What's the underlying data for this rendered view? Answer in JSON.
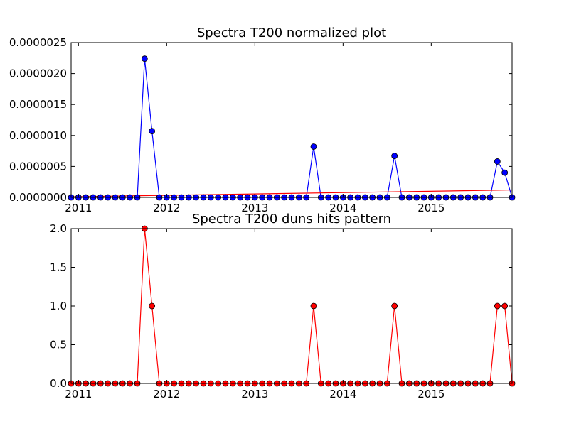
{
  "chart_data": [
    {
      "type": "line",
      "title": "Spectra T200 normalized plot",
      "xlabel": "",
      "ylabel": "",
      "x_tick_labels": [
        "2011",
        "2012",
        "2013",
        "2014",
        "2015"
      ],
      "x_ticks": [
        "2011-01",
        "2012-01",
        "2013-01",
        "2014-01",
        "2015-01"
      ],
      "y_tick_labels": [
        "0.0000000",
        "0.0000005",
        "0.0000010",
        "0.0000015",
        "0.0000020",
        "0.0000025"
      ],
      "y_ticks": [
        0,
        5e-07,
        1e-06,
        1.5e-06,
        2e-06,
        2.5e-06
      ],
      "xlim": [
        "2010-12",
        "2015-12"
      ],
      "ylim": [
        0,
        2.5e-06
      ],
      "grid": false,
      "series": [
        {
          "marker": "circle",
          "color": "#0000ff",
          "x": [
            "2010-12",
            "2011-01",
            "2011-02",
            "2011-03",
            "2011-04",
            "2011-05",
            "2011-06",
            "2011-07",
            "2011-08",
            "2011-09",
            "2011-10",
            "2011-11",
            "2011-12",
            "2012-01",
            "2012-02",
            "2012-03",
            "2012-04",
            "2012-05",
            "2012-06",
            "2012-07",
            "2012-08",
            "2012-09",
            "2012-10",
            "2012-11",
            "2012-12",
            "2013-01",
            "2013-02",
            "2013-03",
            "2013-04",
            "2013-05",
            "2013-06",
            "2013-07",
            "2013-08",
            "2013-09",
            "2013-10",
            "2013-11",
            "2013-12",
            "2014-01",
            "2014-02",
            "2014-03",
            "2014-04",
            "2014-05",
            "2014-06",
            "2014-07",
            "2014-08",
            "2014-09",
            "2014-10",
            "2014-11",
            "2014-12",
            "2015-01",
            "2015-02",
            "2015-03",
            "2015-04",
            "2015-05",
            "2015-06",
            "2015-07",
            "2015-08",
            "2015-09",
            "2015-10",
            "2015-11",
            "2015-12"
          ],
          "values": [
            0,
            0,
            0,
            0,
            0,
            0,
            0,
            0,
            0,
            0,
            2.24e-06,
            1.07e-06,
            0,
            0,
            0,
            0,
            0,
            0,
            0,
            0,
            0,
            0,
            0,
            0,
            0,
            0,
            0,
            0,
            0,
            0,
            0,
            0,
            0,
            8.2e-07,
            0,
            0,
            0,
            0,
            0,
            0,
            0,
            0,
            0,
            0,
            6.7e-07,
            0,
            0,
            0,
            0,
            0,
            0,
            0,
            0,
            0,
            0,
            0,
            0,
            0,
            5.8e-07,
            4e-07,
            0
          ]
        },
        {
          "type": "trend-line",
          "color": "#ff0000",
          "x": [
            "2010-12",
            "2015-12"
          ],
          "values": [
            1e-08,
            1.2e-07
          ]
        }
      ]
    },
    {
      "type": "line",
      "title": "Spectra T200 duns hits pattern",
      "xlabel": "",
      "ylabel": "",
      "x_tick_labels": [
        "2011",
        "2012",
        "2013",
        "2014",
        "2015"
      ],
      "x_ticks": [
        "2011-01",
        "2012-01",
        "2013-01",
        "2014-01",
        "2015-01"
      ],
      "y_tick_labels": [
        "0.0",
        "0.5",
        "1.0",
        "1.5",
        "2.0"
      ],
      "y_ticks": [
        0,
        0.5,
        1,
        1.5,
        2
      ],
      "xlim": [
        "2010-12",
        "2015-12"
      ],
      "ylim": [
        0,
        2
      ],
      "grid": false,
      "series": [
        {
          "marker": "circle",
          "color": "#ff0000",
          "x": [
            "2010-12",
            "2011-01",
            "2011-02",
            "2011-03",
            "2011-04",
            "2011-05",
            "2011-06",
            "2011-07",
            "2011-08",
            "2011-09",
            "2011-10",
            "2011-11",
            "2011-12",
            "2012-01",
            "2012-02",
            "2012-03",
            "2012-04",
            "2012-05",
            "2012-06",
            "2012-07",
            "2012-08",
            "2012-09",
            "2012-10",
            "2012-11",
            "2012-12",
            "2013-01",
            "2013-02",
            "2013-03",
            "2013-04",
            "2013-05",
            "2013-06",
            "2013-07",
            "2013-08",
            "2013-09",
            "2013-10",
            "2013-11",
            "2013-12",
            "2014-01",
            "2014-02",
            "2014-03",
            "2014-04",
            "2014-05",
            "2014-06",
            "2014-07",
            "2014-08",
            "2014-09",
            "2014-10",
            "2014-11",
            "2014-12",
            "2015-01",
            "2015-02",
            "2015-03",
            "2015-04",
            "2015-05",
            "2015-06",
            "2015-07",
            "2015-08",
            "2015-09",
            "2015-10",
            "2015-11",
            "2015-12"
          ],
          "values": [
            0,
            0,
            0,
            0,
            0,
            0,
            0,
            0,
            0,
            0,
            2,
            1,
            0,
            0,
            0,
            0,
            0,
            0,
            0,
            0,
            0,
            0,
            0,
            0,
            0,
            0,
            0,
            0,
            0,
            0,
            0,
            0,
            0,
            1,
            0,
            0,
            0,
            0,
            0,
            0,
            0,
            0,
            0,
            0,
            1,
            0,
            0,
            0,
            0,
            0,
            0,
            0,
            0,
            0,
            0,
            0,
            0,
            0,
            1,
            1,
            0
          ]
        }
      ]
    }
  ]
}
